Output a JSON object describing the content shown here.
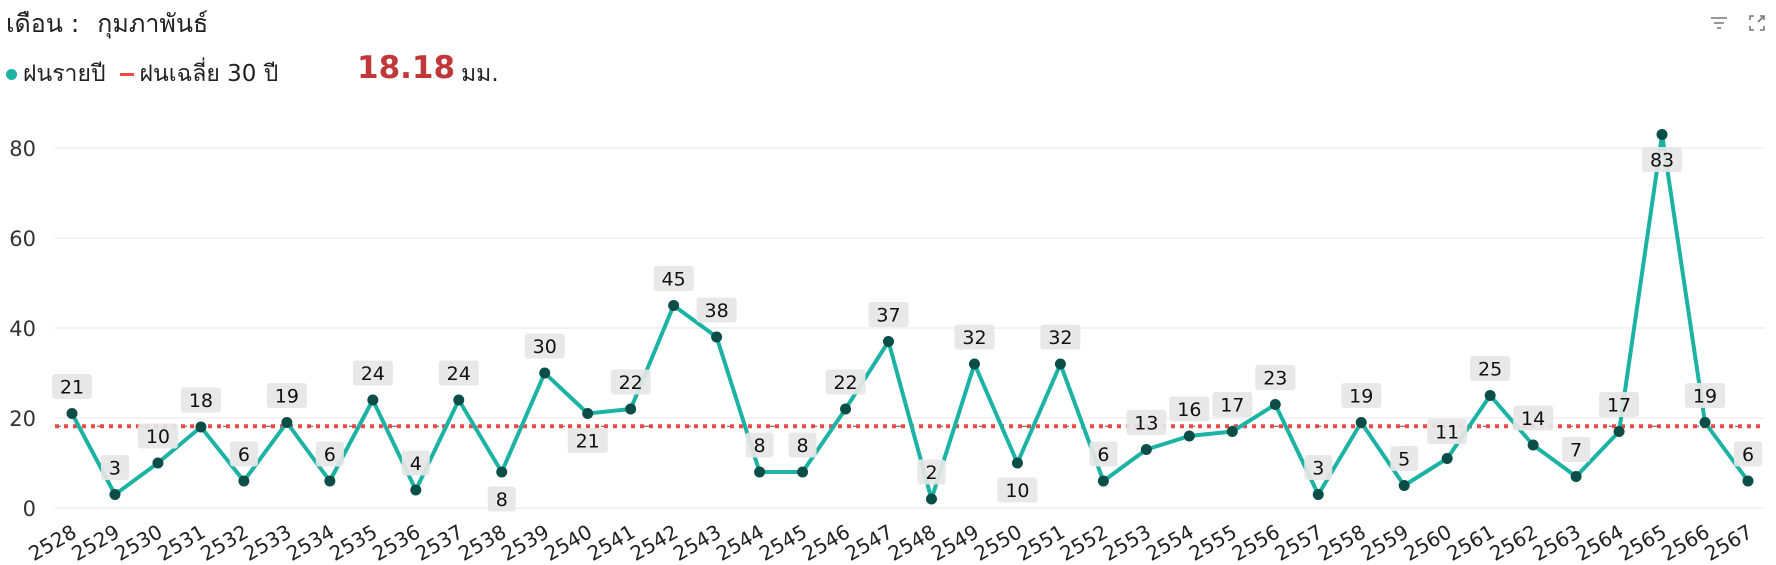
{
  "header": {
    "label": "เดือน :",
    "value": "กุมภาพันธ์"
  },
  "legend": {
    "annual_label": "ฝนรายปี",
    "average_label": "ฝนเฉลี่ย 30 ปี"
  },
  "average": {
    "value": "18.18",
    "unit": "มม."
  },
  "icons": {
    "filter": "filter-icon",
    "expand": "expand-icon"
  },
  "colors": {
    "line": "#1cb3a4",
    "marker": "#0b4d47",
    "average": "#ee4a45",
    "label_bg": "#e6e6e6"
  },
  "chart_data": {
    "type": "line",
    "categories": [
      "2528",
      "2529",
      "2530",
      "2531",
      "2532",
      "2533",
      "2534",
      "2535",
      "2536",
      "2537",
      "2538",
      "2539",
      "2540",
      "2541",
      "2542",
      "2543",
      "2544",
      "2545",
      "2546",
      "2547",
      "2548",
      "2549",
      "2550",
      "2551",
      "2552",
      "2553",
      "2554",
      "2555",
      "2556",
      "2557",
      "2558",
      "2559",
      "2560",
      "2561",
      "2562",
      "2563",
      "2564",
      "2565",
      "2566",
      "2567"
    ],
    "series": [
      {
        "name": "ฝนรายปี",
        "values": [
          21,
          3,
          10,
          18,
          6,
          19,
          6,
          24,
          4,
          24,
          8,
          30,
          21,
          22,
          45,
          38,
          8,
          8,
          22,
          37,
          2,
          32,
          10,
          32,
          6,
          13,
          16,
          17,
          23,
          3,
          19,
          5,
          11,
          25,
          14,
          7,
          17,
          83,
          19,
          6
        ]
      },
      {
        "name": "ฝนเฉลี่ย 30 ปี",
        "value": 18.18
      }
    ],
    "yticks": [
      "0",
      "20",
      "40",
      "60",
      "80"
    ],
    "ylim": [
      0,
      90
    ],
    "grid": true
  }
}
